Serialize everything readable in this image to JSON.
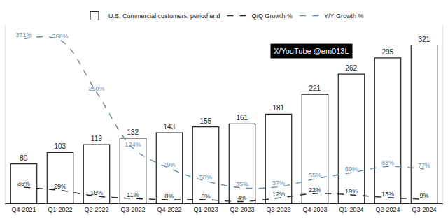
{
  "chart_data": {
    "type": "bar",
    "categories": [
      "Q4-2021",
      "Q1-2022",
      "Q2-2022",
      "Q3-2022",
      "Q4-2022",
      "Q1-2023",
      "Q2-2023",
      "Q3-2023",
      "Q4-2023",
      "Q1-2024",
      "Q2-2024",
      "Q3-2024"
    ],
    "series": [
      {
        "name": "U.S. Commercial customers, period end",
        "type": "bar",
        "color": "#ffffff",
        "values": [
          80,
          103,
          119,
          132,
          143,
          155,
          161,
          181,
          221,
          262,
          295,
          321
        ],
        "data_labels": true
      },
      {
        "name": "Q/Q Growth %",
        "type": "line",
        "axis": "y2",
        "color": "#222222",
        "line_style": "dashed",
        "values": [
          36,
          29,
          16,
          11,
          8,
          8,
          4,
          12,
          22,
          19,
          13,
          9
        ],
        "value_labels": [
          "36%",
          "29%",
          "16%",
          "11%",
          "8%",
          "8%",
          "4%",
          "12%",
          "22%",
          "19%",
          "13%",
          "9%"
        ],
        "data_labels": true
      },
      {
        "name": "Y/Y Growth %",
        "type": "line",
        "axis": "y2",
        "color": "#6b8aa3",
        "line_style": "dashed",
        "values": [
          371,
          368,
          250,
          124,
          79,
          50,
          35,
          37,
          55,
          69,
          83,
          77
        ],
        "value_labels": [
          "371%",
          "368%",
          "250%",
          "124%",
          "79%",
          "50%",
          "35%",
          "37%",
          "55%",
          "69%",
          "83%",
          "77%"
        ],
        "data_labels": true
      }
    ],
    "ylim": [
      0,
      360
    ],
    "y2lim": [
      0,
      400
    ],
    "tick_labels": "x",
    "grid": false,
    "legend": "top",
    "data_labels": true,
    "annotations": [
      {
        "text": "X/YouTube @em013L"
      }
    ]
  }
}
